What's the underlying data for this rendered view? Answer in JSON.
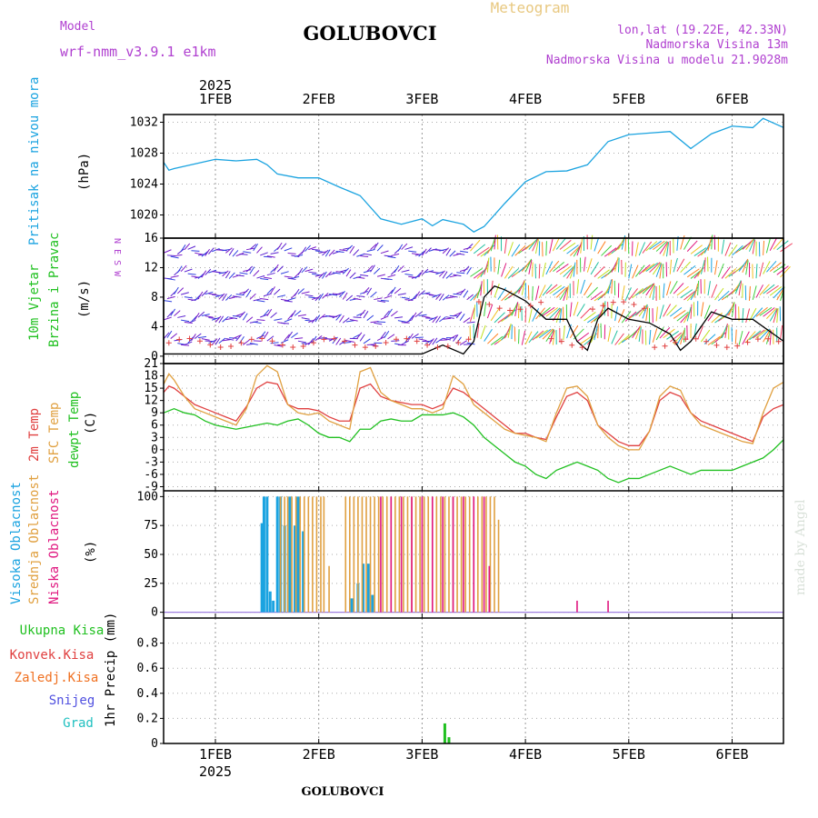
{
  "header": {
    "title": "GOLUBOVCI",
    "subtitle": "Meteogram",
    "model_label": "Model",
    "model_name": "wrf-nmm_v3.9.1 e1km",
    "location": "lon,lat (19.22E, 42.33N)",
    "elevation": "Nadmorska Visina 13m",
    "model_elevation": "Nadmorska Visina u modelu 21.9028m",
    "year": "2025",
    "days": [
      "1FEB",
      "2FEB",
      "3FEB",
      "4FEB",
      "5FEB",
      "6FEB"
    ],
    "footer": "GOLUBOVCI",
    "credit": "made by Angel"
  },
  "colors": {
    "pressure": "#1aa3e0",
    "temp2m": "#e04040",
    "sfc": "#e0a040",
    "dew": "#20c020",
    "high_cloud": "#1aa3e0",
    "mid_cloud": "#e0a040",
    "low_cloud": "#e01880",
    "precip": "#20c020",
    "purple": "#b040d0"
  },
  "chart_data": [
    {
      "type": "line",
      "panel": "pressure",
      "ylabel": [
        "Pritisak na nivou mora",
        "(hPa)"
      ],
      "ylim": [
        1017,
        1033
      ],
      "yticks": [
        1020,
        1024,
        1028,
        1032
      ],
      "x": [
        0.5,
        0.55,
        0.6,
        0.8,
        1.0,
        1.2,
        1.4,
        1.5,
        1.6,
        1.8,
        2.0,
        2.2,
        2.4,
        2.6,
        2.8,
        3.0,
        3.1,
        3.2,
        3.4,
        3.5,
        3.6,
        3.8,
        4.0,
        4.2,
        4.4,
        4.6,
        4.8,
        5.0,
        5.2,
        5.4,
        5.6,
        5.8,
        6.0,
        6.2,
        6.3,
        6.5
      ],
      "values": [
        1026.8,
        1025.8,
        1026,
        1026.6,
        1027.2,
        1027,
        1027.2,
        1026.5,
        1025.3,
        1024.8,
        1024.8,
        1023.6,
        1022.5,
        1019.5,
        1018.8,
        1019.5,
        1018.6,
        1019.4,
        1018.8,
        1017.8,
        1018.5,
        1021.5,
        1024.3,
        1025.6,
        1025.7,
        1026.5,
        1029.5,
        1030.4,
        1030.6,
        1030.8,
        1028.6,
        1030.5,
        1031.5,
        1031.3,
        1032.5,
        1031.3
      ]
    },
    {
      "type": "line",
      "panel": "wind",
      "ylabel": [
        "10m Vjetar",
        "Brzina i Pravac",
        "(m/s)"
      ],
      "compass": "N  E  S  W",
      "ylim": [
        -1,
        16
      ],
      "yticks": [
        0,
        4,
        8,
        12,
        16
      ],
      "x": [
        0.5,
        1.0,
        1.5,
        2.0,
        2.5,
        3.0,
        3.2,
        3.4,
        3.5,
        3.6,
        3.7,
        3.8,
        4.0,
        4.2,
        4.4,
        4.5,
        4.6,
        4.7,
        4.8,
        5.0,
        5.2,
        5.4,
        5.5,
        5.6,
        5.8,
        6.0,
        6.2,
        6.4,
        6.5
      ],
      "values": [
        0.3,
        0.3,
        0.3,
        0.3,
        0.3,
        0.3,
        1.5,
        0.3,
        2,
        8,
        9.5,
        9,
        7.5,
        5,
        5,
        2,
        0.8,
        5,
        6.5,
        5,
        4.5,
        3,
        0.8,
        2,
        6,
        5,
        5,
        3,
        2
      ]
    },
    {
      "type": "line",
      "panel": "temperature",
      "ylabel": [
        "2m Temp",
        "SFC Temp",
        "dewpt Temp",
        "(C)"
      ],
      "ylim": [
        -10,
        21
      ],
      "yticks": [
        -9,
        -6,
        -3,
        0,
        3,
        6,
        9,
        12,
        15,
        18,
        21
      ],
      "x": [
        0.5,
        0.55,
        0.6,
        0.7,
        0.8,
        0.9,
        1.0,
        1.1,
        1.2,
        1.3,
        1.4,
        1.5,
        1.6,
        1.7,
        1.8,
        1.9,
        2.0,
        2.1,
        2.2,
        2.3,
        2.4,
        2.5,
        2.6,
        2.7,
        2.8,
        2.9,
        3.0,
        3.1,
        3.2,
        3.3,
        3.4,
        3.5,
        3.6,
        3.7,
        3.8,
        3.9,
        4.0,
        4.1,
        4.2,
        4.3,
        4.4,
        4.5,
        4.6,
        4.7,
        4.8,
        4.9,
        5.0,
        5.1,
        5.2,
        5.3,
        5.4,
        5.5,
        5.6,
        5.7,
        5.8,
        5.9,
        6.0,
        6.1,
        6.2,
        6.3,
        6.4,
        6.5
      ],
      "series": [
        {
          "name": "2m Temp",
          "values": [
            14,
            15.5,
            15,
            13,
            11,
            10,
            9,
            8,
            7,
            10.5,
            15,
            16.5,
            16,
            11,
            10,
            10,
            9.5,
            8,
            7,
            7,
            15,
            16,
            13,
            12,
            11.5,
            11,
            11,
            10,
            11,
            15,
            14,
            12,
            10,
            8,
            6,
            4,
            4,
            3,
            2.5,
            8,
            13,
            14,
            12,
            6,
            4,
            2,
            1,
            1,
            4.5,
            12,
            14,
            13,
            9,
            7,
            6,
            5,
            4,
            3,
            2,
            8,
            10,
            11
          ]
        },
        {
          "name": "SFC Temp",
          "values": [
            16,
            18.5,
            17,
            13,
            10,
            9,
            8,
            7,
            6,
            10,
            18,
            20.5,
            19,
            11,
            9,
            8.5,
            9,
            7,
            6,
            5,
            19,
            20,
            14,
            12,
            11,
            10,
            10,
            9,
            10,
            18,
            16,
            11,
            9,
            7,
            5,
            4,
            3.5,
            3,
            2,
            9,
            15,
            15.5,
            13,
            6,
            3,
            1,
            0,
            0,
            4.5,
            13,
            15.5,
            14.5,
            9,
            6,
            5,
            4,
            3,
            2,
            1.5,
            9,
            15,
            16.5
          ]
        },
        {
          "name": "dewpt Temp",
          "values": [
            9,
            9.5,
            10,
            9,
            8.5,
            7,
            6,
            5.5,
            5,
            5.5,
            6,
            6.5,
            6,
            7,
            7.5,
            6,
            4,
            3,
            3,
            2,
            5,
            5,
            7,
            7.5,
            7,
            7,
            8.5,
            8.5,
            8.5,
            9,
            8,
            6,
            3,
            1,
            -1,
            -3,
            -4,
            -6,
            -7,
            -5,
            -4,
            -3,
            -4,
            -5,
            -7,
            -8,
            -7,
            -7,
            -6,
            -5,
            -4,
            -5,
            -6,
            -5,
            -5,
            -5,
            -5,
            -4,
            -3,
            -2,
            0,
            2.5
          ]
        }
      ]
    },
    {
      "type": "bar",
      "panel": "cloud",
      "ylabel": [
        "Visoka Oblacnost",
        "Srednja Oblacnost",
        "Niska Oblacnost",
        "(%)"
      ],
      "ylim": [
        -5,
        105
      ],
      "yticks": [
        0,
        25,
        50,
        75,
        100
      ],
      "series": [
        {
          "name": "Visoka Oblacnost",
          "x": [
            1.45,
            1.47,
            1.5,
            1.53,
            1.56,
            1.6,
            1.63,
            1.67,
            1.72,
            1.77,
            1.8,
            1.85,
            2.32,
            2.38,
            2.43,
            2.48,
            2.52
          ],
          "values": [
            77,
            100,
            100,
            18,
            10,
            100,
            100,
            75,
            100,
            75,
            100,
            70,
            12,
            25,
            42,
            42,
            15
          ]
        },
        {
          "name": "Srednja Oblacnost",
          "x": [
            1.63,
            1.67,
            1.7,
            1.74,
            1.78,
            1.82,
            1.86,
            1.9,
            1.94,
            1.98,
            2.02,
            2.05,
            2.1,
            2.26,
            2.3,
            2.34,
            2.38,
            2.42,
            2.46,
            2.5,
            2.54,
            2.58,
            2.62,
            2.66,
            2.7,
            2.74,
            2.78,
            2.82,
            2.86,
            2.9,
            2.94,
            2.98,
            3.02,
            3.06,
            3.1,
            3.14,
            3.18,
            3.22,
            3.26,
            3.3,
            3.34,
            3.38,
            3.42,
            3.46,
            3.5,
            3.54,
            3.58,
            3.62,
            3.66,
            3.7,
            3.74
          ],
          "values": [
            100,
            100,
            100,
            100,
            100,
            100,
            100,
            100,
            100,
            100,
            100,
            100,
            40,
            100,
            100,
            100,
            100,
            100,
            100,
            100,
            100,
            100,
            100,
            100,
            100,
            100,
            100,
            100,
            100,
            100,
            100,
            100,
            100,
            100,
            100,
            100,
            100,
            100,
            100,
            100,
            100,
            100,
            100,
            100,
            100,
            100,
            100,
            100,
            100,
            100,
            80
          ]
        },
        {
          "name": "Niska Oblacnost",
          "x": [
            2.6,
            2.7,
            2.8,
            2.9,
            3.0,
            3.1,
            3.2,
            3.3,
            3.4,
            3.5,
            3.6,
            3.65,
            4.5,
            4.8
          ],
          "values": [
            100,
            100,
            100,
            100,
            100,
            100,
            100,
            100,
            100,
            100,
            100,
            40,
            10,
            10
          ]
        }
      ]
    },
    {
      "type": "bar",
      "panel": "precip",
      "ylabel": [
        "1hr Precip (mm)"
      ],
      "legend": [
        "Ukupna Kisa",
        "Konvek.Kisa",
        "Zaledj.Kisa",
        "Snijeg",
        "Grad"
      ],
      "ylim": [
        0,
        1.0
      ],
      "yticks": [
        0,
        0.2,
        0.4,
        0.6,
        0.8
      ],
      "series": [
        {
          "name": "Ukupna Kisa",
          "x": [
            3.22,
            3.26
          ],
          "values": [
            0.16,
            0.05
          ]
        }
      ]
    }
  ]
}
